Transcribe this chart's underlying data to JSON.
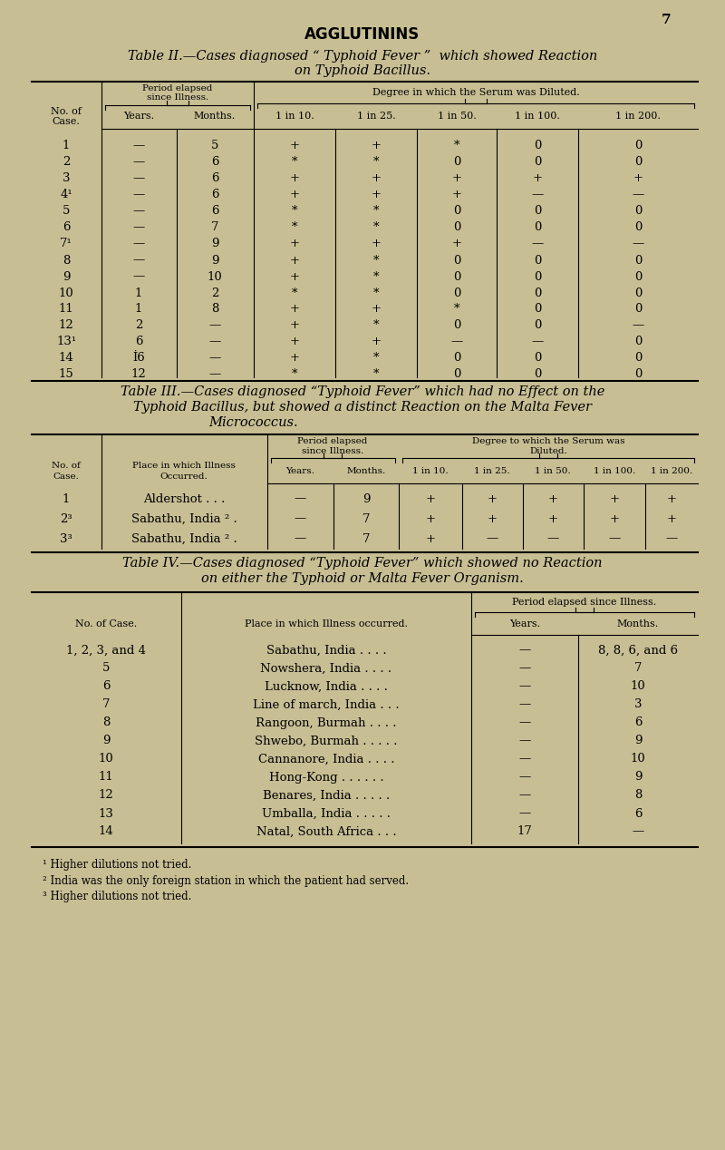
{
  "bg_color": "#c8be94",
  "page_num": "7",
  "heading": "AGGLUTININS",
  "table2_title_line1": "Table II.—Cases diagnosed “ Typhoid Fever ”  which showed Reaction",
  "table2_title_line2": "on Typhoid Bacillus.",
  "table2_rows": [
    [
      "1",
      "—",
      "5",
      "+",
      "+",
      "*",
      "0",
      "0"
    ],
    [
      "2",
      "—",
      "6",
      "*",
      "*",
      "0",
      "0",
      "0"
    ],
    [
      "3",
      "—",
      "6",
      "+",
      "+",
      "+",
      "+",
      "+"
    ],
    [
      "4¹",
      "—",
      "6",
      "+",
      "+",
      "+",
      "—",
      "—"
    ],
    [
      "5",
      "—",
      "6",
      "*",
      "*",
      "0",
      "0",
      "0"
    ],
    [
      "6",
      "—",
      "7",
      "*",
      "*",
      "0",
      "0",
      "0"
    ],
    [
      "7¹",
      "—",
      "9",
      "+",
      "+",
      "+",
      "—",
      "—"
    ],
    [
      "8",
      "—",
      "9",
      "+",
      "*",
      "0",
      "0",
      "0"
    ],
    [
      "9",
      "—",
      "10",
      "+",
      "*",
      "0",
      "0",
      "0"
    ],
    [
      "10",
      "1",
      "2",
      "*",
      "*",
      "0",
      "0",
      "0"
    ],
    [
      "11",
      "1",
      "8",
      "+",
      "+",
      "*",
      "0",
      "0"
    ],
    [
      "12",
      "2",
      "—",
      "+",
      "*",
      "0",
      "0",
      "—"
    ],
    [
      "13¹",
      "6",
      "—",
      "+",
      "+",
      "—",
      "—",
      "0"
    ],
    [
      "14",
      "İ6",
      "—",
      "+",
      "*",
      "0",
      "0",
      "0"
    ],
    [
      "15",
      "12",
      "—",
      "*",
      "*",
      "0",
      "0",
      "0"
    ]
  ],
  "table3_title_line1": "Table III.—Cases diagnosed “Typhoid Fever” which had no Effect on the",
  "table3_title_line2": "Typhoid Bacillus, but showed a distinct Reaction on the Malta Fever",
  "table3_title_line3": "Micrococcus.",
  "table3_rows": [
    [
      "1",
      "Aldershot . . .",
      "—",
      "9",
      "+",
      "+",
      "+",
      "+",
      "+"
    ],
    [
      "2³",
      "Sabathu, India ² .",
      "—",
      "7",
      "+",
      "+",
      "+",
      "+",
      "+"
    ],
    [
      "3³",
      "Sabathu, India ² .",
      "—",
      "7",
      "+",
      "—",
      "—",
      "—",
      "—"
    ]
  ],
  "table4_title_line1": "Table IV.—Cases diagnosed “Typhoid Fever” which showed no Reaction",
  "table4_title_line2": "on either the Typhoid or Malta Fever Organism.",
  "table4_rows": [
    [
      "1, 2, 3, and 4",
      "Sabathu, India . . . .",
      "—",
      "8, 8, 6, and 6"
    ],
    [
      "5",
      "Nowshera, India . . . .",
      "—",
      "7"
    ],
    [
      "6",
      "Lucknow, India . . . .",
      "—",
      "10"
    ],
    [
      "7",
      "Line of march, India . . .",
      "—",
      "3"
    ],
    [
      "8",
      "Rangoon, Burmah . . . .",
      "—",
      "6"
    ],
    [
      "9",
      "Shwebo, Burmah . . . . .",
      "—",
      "9"
    ],
    [
      "10",
      "Cannanore, India . . . .",
      "—",
      "10"
    ],
    [
      "11",
      "Hong-Kong . . . . . .",
      "—",
      "9"
    ],
    [
      "12",
      "Benares, India . . . . .",
      "—",
      "8"
    ],
    [
      "13",
      "Umballa, India . . . . .",
      "—",
      "6"
    ],
    [
      "14",
      "Natal, South Africa . . .",
      "17",
      "—"
    ]
  ],
  "footnotes": [
    "¹ Higher dilutions not tried.",
    "² India was the only foreign station in which the patient had served.",
    "³ Higher dilutions not tried."
  ]
}
